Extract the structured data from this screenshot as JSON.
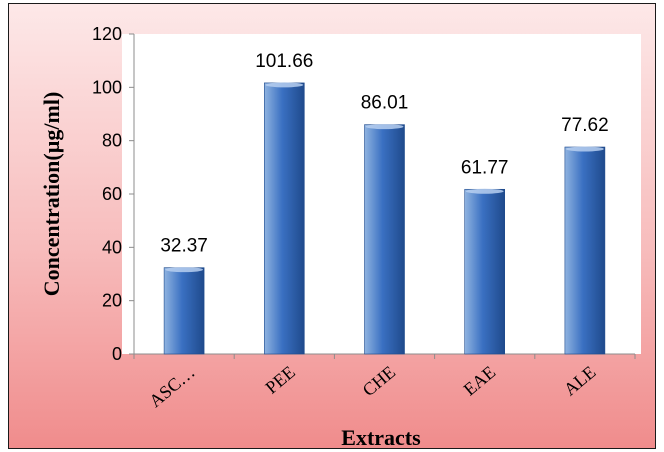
{
  "chart_data": {
    "type": "bar",
    "title": "",
    "xlabel": "Extracts",
    "ylabel": "Concentration(µg/ml)",
    "categories": [
      "ASC…",
      "PEE",
      "CHE",
      "EAE",
      "ALE"
    ],
    "values": [
      32.37,
      101.66,
      86.01,
      61.77,
      77.62
    ],
    "data_labels": [
      "32.37",
      "101.66",
      "86.01",
      "61.77",
      "77.62"
    ],
    "ylim": [
      0,
      120
    ],
    "yticks": [
      0,
      20,
      40,
      60,
      80,
      100,
      120
    ],
    "grid": false,
    "legend": "none",
    "colors": {
      "bar_top": "#8fb3e0",
      "bar_mid": "#3a70c2",
      "bar_bottom": "#1f4a8c",
      "plot_bg": "#ffffff",
      "axis": "#8c8c8c"
    }
  }
}
